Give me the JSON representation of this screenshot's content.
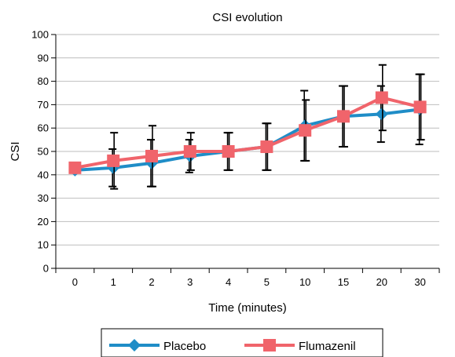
{
  "chart_data": {
    "type": "line",
    "title": "CSI evolution",
    "xlabel": "Time (minutes)",
    "ylabel": "CSI",
    "categories": [
      "0",
      "1",
      "2",
      "3",
      "4",
      "5",
      "10",
      "15",
      "20",
      "30"
    ],
    "yticks": [
      "0",
      "10",
      "20",
      "30",
      "40",
      "50",
      "60",
      "70",
      "80",
      "90",
      "100"
    ],
    "ylim": [
      0,
      100
    ],
    "grid": "horizontal",
    "legend_position": "bottom",
    "series": [
      {
        "name": "Placebo",
        "color": "#1F8DC7",
        "marker": "diamond",
        "values": [
          42,
          43,
          45,
          48,
          50,
          52,
          61,
          65,
          66,
          68
        ],
        "error": [
          1,
          8,
          10,
          7,
          8,
          10,
          15,
          13,
          12,
          15
        ]
      },
      {
        "name": "Flumazenil",
        "color": "#F0646B",
        "marker": "square",
        "values": [
          43,
          46,
          48,
          50,
          50,
          52,
          59,
          65,
          73,
          69
        ],
        "error": [
          1,
          12,
          13,
          8,
          8,
          10,
          13,
          13,
          14,
          14
        ]
      }
    ]
  }
}
